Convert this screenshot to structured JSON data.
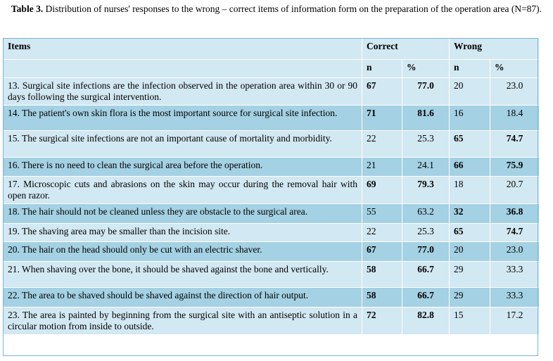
{
  "caption": {
    "label": "Table 3.",
    "text": " Distribution of nurses' responses to the wrong – correct items of information form on the preparation of the operation area (N=87)."
  },
  "header": {
    "items": "Items",
    "correct": "Correct",
    "wrong": "Wrong",
    "n": "n",
    "pct": "%"
  },
  "rows": [
    {
      "item": "13. Surgical site infections are the infection observed in the operation area within 30 or 90 days following the surgical intervention.",
      "cn": "67",
      "cp": "77.0",
      "wn": "20",
      "wp": "23.0",
      "bold": "correct"
    },
    {
      "item": "14. The patient's own skin flora is the most important source for surgical site infection.",
      "cn": "71",
      "cp": "81.6",
      "wn": "16",
      "wp": "18.4",
      "bold": "correct"
    },
    {
      "item": "15. The surgical site infections are not an important cause of mortality and morbidity.",
      "cn": "22",
      "cp": "25.3",
      "wn": "65",
      "wp": "74.7",
      "bold": "wrong"
    },
    {
      "item": "16. There is no need to clean the surgical area before the operation.",
      "cn": "21",
      "cp": "24.1",
      "wn": "66",
      "wp": "75.9",
      "bold": "wrong"
    },
    {
      "item": "17. Microscopic cuts and abrasions on the skin may occur during the removal hair with open razor.",
      "cn": "69",
      "cp": "79.3",
      "wn": "18",
      "wp": "20.7",
      "bold": "correct"
    },
    {
      "item": "18. The hair should not be cleaned unless they are obstacle to the surgical area.",
      "cn": "55",
      "cp": "63.2",
      "wn": "32",
      "wp": "36.8",
      "bold": "wrong"
    },
    {
      "item": "19. The shaving area may be smaller than the incision site.",
      "cn": "22",
      "cp": "25.3",
      "wn": "65",
      "wp": "74.7",
      "bold": "wrong"
    },
    {
      "item": "20. The hair on the head should only be cut with an electric shaver.",
      "cn": "67",
      "cp": "77.0",
      "wn": "20",
      "wp": "23.0",
      "bold": "correct"
    },
    {
      "item": "21. When shaving over the bone, it should be shaved against the bone and vertically.",
      "cn": "58",
      "cp": "66.7",
      "wn": "29",
      "wp": "33.3",
      "bold": "correct"
    },
    {
      "item": "22. The area to be shaved should be shaved against the direction of hair output.",
      "cn": "58",
      "cp": "66.7",
      "wn": "29",
      "wp": "33.3",
      "bold": "correct"
    },
    {
      "item": "23. The area is painted by beginning from the surgical site with an antiseptic solution in a circular motion from inside to outside.",
      "cn": "72",
      "cp": "82.8",
      "wn": "15",
      "wp": "17.2",
      "bold": "correct"
    }
  ]
}
